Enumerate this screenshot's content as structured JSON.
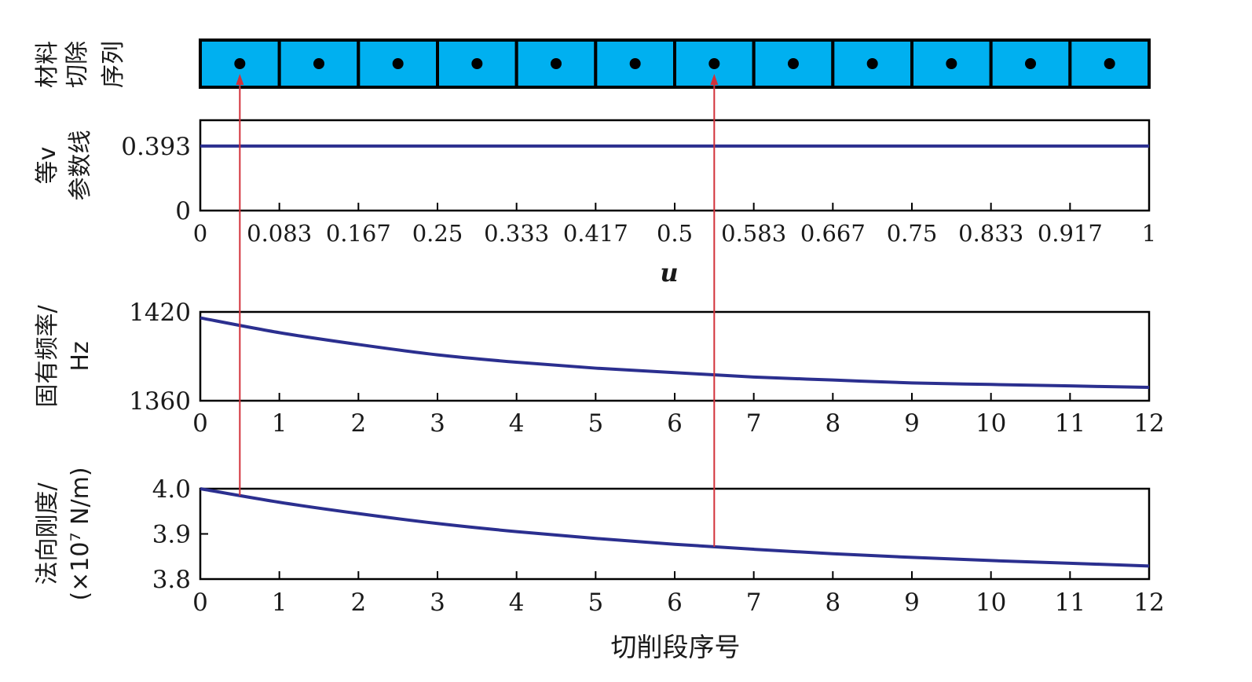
{
  "chart_data": [
    {
      "type": "table",
      "panel": "material-removal-sequence",
      "ylabel_lines": [
        "材料",
        "切除",
        "序列"
      ],
      "cells": 12,
      "cell_color": "#00b0f0",
      "highlighted_cells": [
        1,
        7
      ]
    },
    {
      "type": "line",
      "panel": "iso-v-param-line",
      "ylabel_lines": [
        "等v",
        "参数线"
      ],
      "xlabel": "u",
      "xlim": [
        0,
        1
      ],
      "ylim": [
        0,
        0.55
      ],
      "yticks": [
        "0.393",
        "0"
      ],
      "ytick_values": [
        0.393,
        0
      ],
      "xtick_labels": [
        "0",
        "0.083",
        "0.167",
        "0.25",
        "0.333",
        "0.417",
        "0.5",
        "0.583",
        "0.667",
        "0.75",
        "0.833",
        "0.917",
        "1"
      ],
      "x": [
        0,
        1
      ],
      "y": [
        0.393,
        0.393
      ],
      "color": "#2b2f8f"
    },
    {
      "type": "line",
      "panel": "natural-frequency",
      "ylabel_lines": [
        "固有频率/",
        "Hz"
      ],
      "xlim": [
        0,
        12
      ],
      "ylim": [
        1360,
        1420
      ],
      "yticks": [
        "1420",
        "1360"
      ],
      "ytick_values": [
        1420,
        1360
      ],
      "xtick_labels": [
        "0",
        "1",
        "2",
        "3",
        "4",
        "5",
        "6",
        "7",
        "8",
        "9",
        "10",
        "11",
        "12"
      ],
      "x": [
        0,
        1,
        2,
        3,
        4,
        5,
        6,
        7,
        8,
        9,
        10,
        11,
        12
      ],
      "y": [
        1416,
        1406,
        1398,
        1391,
        1386,
        1382,
        1379,
        1376,
        1374,
        1372,
        1371,
        1370,
        1369
      ],
      "color": "#2b2f8f"
    },
    {
      "type": "line",
      "panel": "normal-stiffness",
      "ylabel_lines": [
        "法向刚度/",
        "(×10⁷ N/m)"
      ],
      "xlabel": "切削段序号",
      "xlim": [
        0,
        12
      ],
      "ylim": [
        3.8,
        4.0
      ],
      "yticks": [
        "4.0",
        "3.9",
        "3.8"
      ],
      "ytick_values": [
        4.0,
        3.9,
        3.8
      ],
      "xtick_labels": [
        "0",
        "1",
        "2",
        "3",
        "4",
        "5",
        "6",
        "7",
        "8",
        "9",
        "10",
        "11",
        "12"
      ],
      "x": [
        0,
        1,
        2,
        3,
        4,
        5,
        6,
        7,
        8,
        9,
        10,
        11,
        12
      ],
      "y": [
        4.0,
        3.97,
        3.945,
        3.923,
        3.905,
        3.89,
        3.877,
        3.866,
        3.856,
        3.848,
        3.841,
        3.835,
        3.829
      ],
      "color": "#2b2f8f"
    }
  ],
  "arrows": {
    "color": "#d2313a",
    "segment_positions": [
      0.5,
      6.5
    ]
  }
}
